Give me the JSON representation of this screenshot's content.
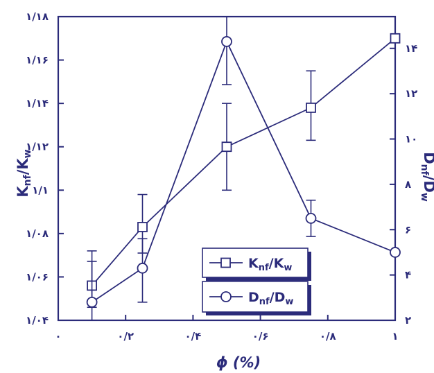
{
  "chart_data": {
    "type": "line",
    "x": [
      0.1,
      0.25,
      0.5,
      0.75,
      1.0
    ],
    "xlabel": "ϕ (%)",
    "xlim": [
      0,
      1
    ],
    "x_ticks": [
      {
        "value": 0,
        "label": "۰"
      },
      {
        "value": 0.2,
        "label": "۰/۲"
      },
      {
        "value": 0.4,
        "label": "۰/۴"
      },
      {
        "value": 0.6,
        "label": "۰/۶"
      },
      {
        "value": 0.8,
        "label": "۰/۸"
      },
      {
        "value": 1.0,
        "label": "۱"
      }
    ],
    "left_axis": {
      "label": {
        "main": "K",
        "sub": "nf",
        "sep": "/K",
        "sub2": "w"
      },
      "ylim": [
        1.04,
        1.18
      ],
      "ticks": [
        {
          "value": 1.04,
          "label": "۱/۰۴"
        },
        {
          "value": 1.06,
          "label": "۱/۰۶"
        },
        {
          "value": 1.08,
          "label": "۱/۰۸"
        },
        {
          "value": 1.1,
          "label": "۱/۱"
        },
        {
          "value": 1.12,
          "label": "۱/۱۲"
        },
        {
          "value": 1.14,
          "label": "۱/۱۴"
        },
        {
          "value": 1.16,
          "label": "۱/۱۶"
        },
        {
          "value": 1.18,
          "label": "۱/۱۸"
        }
      ]
    },
    "right_axis": {
      "label": {
        "main": "D",
        "sub": "nf",
        "sep": "/D",
        "sub2": "w"
      },
      "ylim": [
        2,
        15.4
      ],
      "ticks": [
        {
          "value": 2,
          "label": "۲"
        },
        {
          "value": 4,
          "label": "۴"
        },
        {
          "value": 6,
          "label": "۶"
        },
        {
          "value": 8,
          "label": "۸"
        },
        {
          "value": 10,
          "label": "۱۰"
        },
        {
          "value": 12,
          "label": "۱۲"
        },
        {
          "value": 14,
          "label": "۱۴"
        }
      ]
    },
    "series": [
      {
        "name": "Knf/Kw",
        "axis": "left",
        "marker": "square",
        "values": [
          1.056,
          1.083,
          1.12,
          1.138,
          1.17
        ],
        "err_low": [
          1.046,
          1.071,
          1.1,
          1.123,
          null
        ],
        "err_high": [
          1.072,
          1.098,
          1.14,
          1.155,
          null
        ]
      },
      {
        "name": "Dnf/Dw",
        "axis": "left_or_right",
        "marker": "circle",
        "values": [
          2.8,
          4.3,
          14.3,
          6.5,
          5.0
        ],
        "err_low": [
          2.0,
          2.8,
          12.4,
          5.7,
          null
        ],
        "err_high": [
          4.6,
          5.6,
          15.4,
          7.3,
          null
        ]
      }
    ],
    "legend": {
      "placement": "bottom-right",
      "entries": [
        {
          "main": "K",
          "sub": "nf",
          "sep": "/K",
          "sub2": "w",
          "marker": "square"
        },
        {
          "main": "D",
          "sub": "nf",
          "sep": "/D",
          "sub2": "w",
          "marker": "circle"
        }
      ]
    },
    "colors": {
      "line": "#2b2b7a",
      "frame": "#2b2b7a",
      "legend_shadow": "#2b2b7a"
    },
    "grid": false
  }
}
